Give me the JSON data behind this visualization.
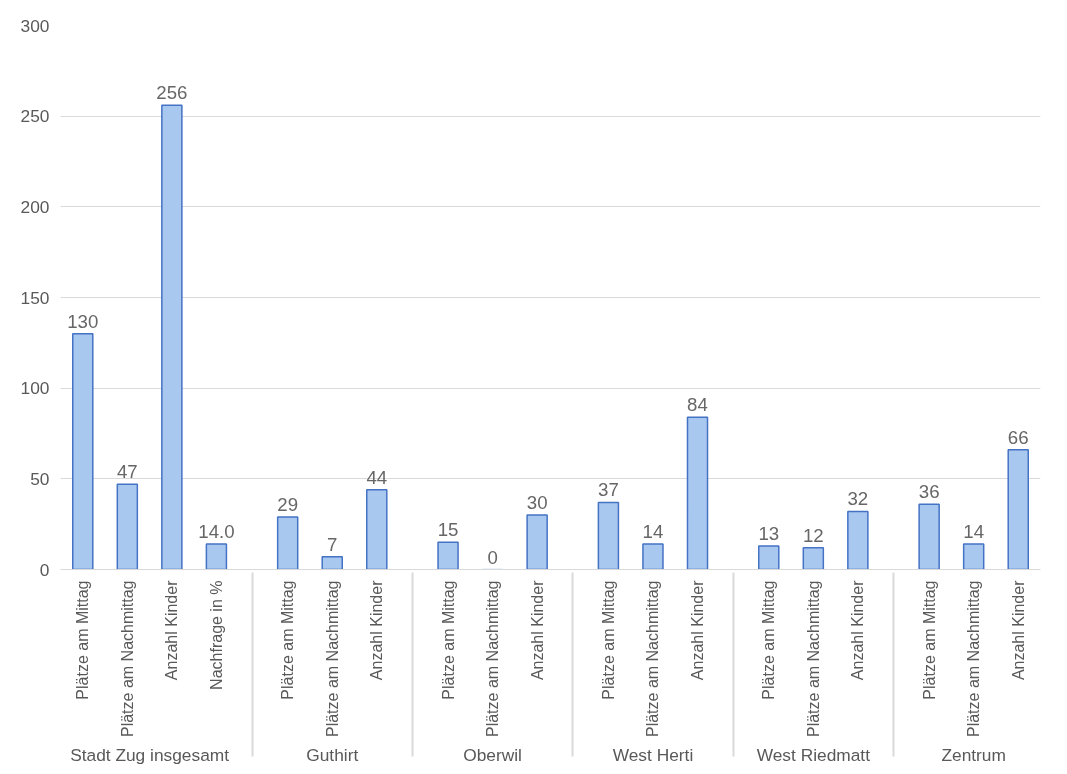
{
  "chart_data": {
    "type": "bar",
    "categories": [
      "Plätze am Mittag",
      "Plätze am Nachmittag",
      "Anzahl Kinder",
      "Nachfrage in %",
      "Plätze am Mittag",
      "Plätze am Nachmittag",
      "Anzahl Kinder",
      "Plätze am Mittag",
      "Plätze am Nachmittag",
      "Anzahl Kinder",
      "Plätze am Mittag",
      "Plätze am Nachmittag",
      "Anzahl Kinder",
      "Plätze am Mittag",
      "Plätze am Nachmittag",
      "Anzahl Kinder",
      "Plätze am Mittag",
      "Plätze am Nachmittag",
      "Anzahl Kinder"
    ],
    "values": [
      130,
      47,
      256,
      14.0,
      29,
      7,
      44,
      15,
      0,
      30,
      37,
      14,
      84,
      13,
      12,
      32,
      36,
      14,
      66
    ],
    "value_labels": [
      "130",
      "47",
      "256",
      "14.0",
      "29",
      "7",
      "44",
      "15",
      "0",
      "30",
      "37",
      "14",
      "84",
      "13",
      "12",
      "32",
      "36",
      "14",
      "66"
    ],
    "color": "#a9c8f0",
    "annotations": [
      "Stadt Zug insgesamt",
      "Guthirt",
      "Oberwil",
      "West Herti",
      "West Riedmatt",
      "Zentrum"
    ],
    "ylim": [
      0,
      300
    ],
    "yticks": [
      0,
      50,
      100,
      150,
      200,
      250,
      300
    ],
    "grid": "y"
  }
}
